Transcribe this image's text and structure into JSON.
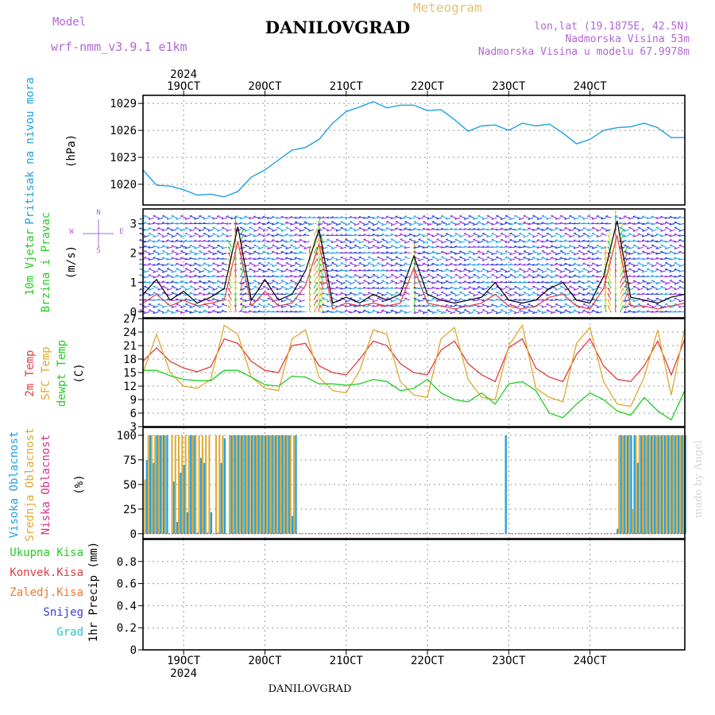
{
  "header": {
    "model_label": "Model",
    "model_name": "wrf-nmm_v3.9.1 e1km",
    "station": "DANILOVGRAD",
    "meteogram_label": "Meteogram",
    "lonlat": "lon,lat (19.1875E, 42.5N)",
    "elevation": "Nadmorska Visina 53m",
    "model_elevation": "Nadmorska Visina u modelu 67.9978m",
    "credit": "made by Angel",
    "footer": "DANILOVGRAD"
  },
  "colors": {
    "pressure": "#1ea0e6",
    "wind_speed": "#000000",
    "temp2m": "#e33c3c",
    "sfc_temp": "#e0a830",
    "dewpoint": "#22cc22",
    "cloud_high": "#1ea0e6",
    "cloud_mid": "#e0a830",
    "cloud_low": "#dd2e8a",
    "precip_total": "#22cc22",
    "precip_conv": "#e33c3c",
    "precip_frz": "#f07a2a",
    "snow": "#3a3ae0",
    "hail": "#22c8c0"
  },
  "time_axis": {
    "year": "2024",
    "ticks": [
      "19OCT",
      "20OCT",
      "21OCT",
      "22OCT",
      "23OCT",
      "24OCT"
    ]
  },
  "wind_legend": {
    "n": "N",
    "s": "S",
    "w": "W",
    "e": "E"
  },
  "chart_data": [
    {
      "type": "line",
      "ylabel": "Pritisak na nivou mora",
      "unit": "(hPa)",
      "yticks": [
        1020,
        1023,
        1026,
        1029
      ],
      "ylim": [
        1017.7,
        1029.9
      ],
      "grid": true,
      "x_hours": [
        0,
        4,
        8,
        12,
        16,
        20,
        24,
        28,
        32,
        36,
        40,
        44,
        48,
        52,
        56,
        60,
        64,
        68,
        72,
        76,
        80,
        84,
        88,
        92,
        96,
        100,
        104,
        108,
        112,
        116,
        120,
        124,
        128,
        132,
        136,
        140,
        144,
        148,
        152,
        156,
        160
      ],
      "series": [
        {
          "values": [
            1021.6,
            1019.9,
            1019.8,
            1019.4,
            1018.8,
            1018.9,
            1018.6,
            1019.2,
            1020.8,
            1021.6,
            1022.7,
            1023.8,
            1024.1,
            1025.0,
            1026.8,
            1028.1,
            1028.6,
            1029.2,
            1028.5,
            1028.8,
            1028.8,
            1028.2,
            1028.3,
            1027.2,
            1025.9,
            1026.5,
            1026.6,
            1026.0,
            1026.8,
            1026.5,
            1026.7,
            1025.7,
            1024.5,
            1025.0,
            1026.0,
            1026.3,
            1026.4,
            1026.8,
            1026.3,
            1025.2,
            1025.2
          ]
        }
      ]
    },
    {
      "type": "line",
      "ylabel": "10m Vjetar Brzina i Pravac",
      "unit": "(m/s)",
      "yticks": [
        0,
        1,
        2,
        3
      ],
      "ylim": [
        -0.2,
        3.5
      ],
      "grid": true,
      "x_hours": [
        0,
        4,
        8,
        12,
        16,
        20,
        24,
        28,
        32,
        36,
        40,
        44,
        48,
        52,
        56,
        60,
        64,
        68,
        72,
        76,
        80,
        84,
        88,
        92,
        96,
        100,
        104,
        108,
        112,
        116,
        120,
        124,
        128,
        132,
        136,
        140,
        144,
        148,
        152,
        156,
        160
      ],
      "series": [
        {
          "values": [
            0.6,
            1.1,
            0.4,
            0.7,
            0.3,
            0.5,
            0.8,
            2.9,
            0.4,
            1.1,
            0.4,
            0.6,
            1.4,
            2.8,
            0.3,
            0.5,
            0.3,
            0.6,
            0.4,
            0.6,
            1.9,
            0.6,
            0.4,
            0.3,
            0.4,
            0.5,
            1.0,
            0.4,
            0.3,
            0.4,
            0.8,
            1.0,
            0.4,
            0.3,
            1.2,
            3.1,
            0.5,
            0.4,
            0.3,
            0.5,
            0.6
          ]
        },
        {
          "values": [
            0.3,
            0.6,
            0.2,
            0.4,
            0.2,
            0.3,
            0.4,
            2.4,
            0.2,
            0.7,
            0.2,
            0.3,
            0.9,
            2.3,
            0.1,
            0.3,
            0.2,
            0.3,
            0.2,
            0.3,
            1.5,
            0.3,
            0.2,
            0.1,
            0.2,
            0.3,
            0.6,
            0.2,
            0.1,
            0.2,
            0.5,
            0.6,
            0.2,
            0.1,
            0.8,
            2.6,
            0.2,
            0.2,
            0.1,
            0.2,
            0.3
          ]
        }
      ]
    },
    {
      "type": "line",
      "ylabels": [
        "2m Temp",
        "SFC Temp",
        "dewpt Temp"
      ],
      "unit": "(C)",
      "yticks": [
        3,
        6,
        9,
        12,
        15,
        18,
        21,
        24,
        27
      ],
      "ylim": [
        3,
        27
      ],
      "grid": true,
      "x_hours": [
        0,
        4,
        8,
        12,
        16,
        20,
        24,
        28,
        32,
        36,
        40,
        44,
        48,
        52,
        56,
        60,
        64,
        68,
        72,
        76,
        80,
        84,
        88,
        92,
        96,
        100,
        104,
        108,
        112,
        116,
        120,
        124,
        128,
        132,
        136,
        140,
        144,
        148,
        152,
        156,
        160
      ],
      "series": [
        {
          "name": "2m Temp",
          "values": [
            17.5,
            20.5,
            17.5,
            16.0,
            15.2,
            16.3,
            22.5,
            21.5,
            17.5,
            15.5,
            15.0,
            21.0,
            21.5,
            16.5,
            15.0,
            14.5,
            18.0,
            22.0,
            21.0,
            17.0,
            15.0,
            14.5,
            20.0,
            22.0,
            17.0,
            14.5,
            13.0,
            20.5,
            22.5,
            16.0,
            14.0,
            13.0,
            19.0,
            22.5,
            16.5,
            13.5,
            13.0,
            16.5,
            22.0,
            14.5,
            22.5
          ]
        },
        {
          "name": "SFC Temp",
          "values": [
            15.0,
            23.5,
            15.0,
            12.0,
            11.5,
            13.5,
            25.5,
            23.5,
            14.0,
            11.5,
            11.0,
            22.5,
            24.5,
            14.0,
            11.0,
            10.5,
            15.5,
            24.5,
            23.5,
            13.0,
            10.0,
            9.5,
            22.5,
            25.0,
            13.5,
            9.5,
            9.0,
            21.0,
            25.5,
            11.5,
            9.5,
            8.5,
            21.5,
            25.0,
            13.0,
            8.0,
            7.5,
            14.0,
            24.5,
            10.0,
            25.0
          ]
        },
        {
          "name": "dewpt Temp",
          "values": [
            15.5,
            15.5,
            14.3,
            13.5,
            13.2,
            13.2,
            15.5,
            15.5,
            14.0,
            12.3,
            12.0,
            14.2,
            14.0,
            12.5,
            12.5,
            12.2,
            12.5,
            13.5,
            13.0,
            11.0,
            11.5,
            13.5,
            10.5,
            9.0,
            8.5,
            10.5,
            8.0,
            12.5,
            13.0,
            11.0,
            6.0,
            5.0,
            8.0,
            10.5,
            9.0,
            6.5,
            5.5,
            9.5,
            6.5,
            4.5,
            11.0
          ]
        }
      ]
    },
    {
      "type": "bar",
      "ylabels": [
        "Visoka Oblacnost",
        "Srednja Oblacnost",
        "Niska Oblacnost"
      ],
      "unit": "(%)",
      "yticks": [
        0,
        25,
        50,
        75,
        100
      ],
      "ylim": [
        -5,
        108
      ],
      "grid": true,
      "x_hours": [
        1,
        2,
        3,
        4,
        5,
        6,
        7,
        9,
        10,
        11,
        12,
        13,
        14,
        15,
        16,
        17,
        18,
        19,
        20,
        22,
        23,
        24,
        26,
        27,
        28,
        29,
        30,
        31,
        32,
        33,
        34,
        35,
        36,
        37,
        38,
        39,
        40,
        41,
        42,
        43,
        44,
        45,
        46,
        47,
        48,
        107,
        140,
        141,
        142,
        143,
        144,
        145,
        146,
        147,
        148,
        149,
        150,
        151,
        152,
        153,
        154,
        155,
        156,
        157,
        158,
        159,
        160
      ],
      "series": [
        {
          "name": "high",
          "values": [
            75,
            100,
            72,
            100,
            100,
            100,
            100,
            53,
            12,
            62,
            70,
            22,
            100,
            100,
            1,
            77,
            72,
            1,
            22,
            1,
            72,
            97,
            100,
            100,
            100,
            100,
            100,
            100,
            100,
            100,
            100,
            100,
            100,
            100,
            100,
            100,
            100,
            100,
            100,
            100,
            18,
            100,
            0,
            0,
            0,
            100,
            5,
            100,
            100,
            100,
            100,
            100,
            72,
            100,
            100,
            100,
            100,
            100,
            100,
            100,
            100,
            100,
            100,
            100,
            100,
            100,
            100
          ]
        },
        {
          "name": "mid",
          "values": [
            55,
            100,
            100,
            100,
            100,
            100,
            100,
            100,
            100,
            100,
            100,
            100,
            100,
            100,
            100,
            100,
            100,
            100,
            100,
            100,
            100,
            100,
            100,
            100,
            100,
            100,
            100,
            100,
            100,
            100,
            100,
            100,
            100,
            100,
            100,
            100,
            100,
            100,
            100,
            100,
            100,
            100,
            0,
            0,
            0,
            0,
            0,
            100,
            100,
            100,
            100,
            25,
            100,
            100,
            100,
            100,
            100,
            100,
            100,
            100,
            100,
            100,
            100,
            100,
            100,
            100,
            100
          ]
        },
        {
          "name": "low",
          "values": [
            0,
            0,
            0,
            0,
            0,
            0,
            0,
            0,
            0,
            0,
            0,
            0,
            0,
            0,
            0,
            0,
            0,
            0,
            0,
            0,
            0,
            0,
            0,
            0,
            0,
            0,
            0,
            0,
            0,
            0,
            0,
            0,
            0,
            0,
            0,
            0,
            0,
            0,
            0,
            0,
            0,
            0,
            0,
            0,
            0,
            0,
            0,
            0,
            0,
            0,
            0,
            0,
            0,
            0,
            0,
            0,
            0,
            0,
            0,
            0,
            0,
            0,
            0,
            0,
            0,
            0,
            0
          ]
        }
      ]
    },
    {
      "type": "bar",
      "ylabel": "1hr Precip",
      "unit": "(mm)",
      "legend": [
        "Ukupna Kisa",
        "Konvek.Kisa",
        "Zaledj.Kisa",
        "Snijeg",
        "Grad"
      ],
      "yticks": [
        0,
        0.2,
        0.4,
        0.6,
        0.8
      ],
      "ylim": [
        0,
        1.0
      ],
      "grid": true,
      "x_hours": [],
      "series": []
    }
  ]
}
